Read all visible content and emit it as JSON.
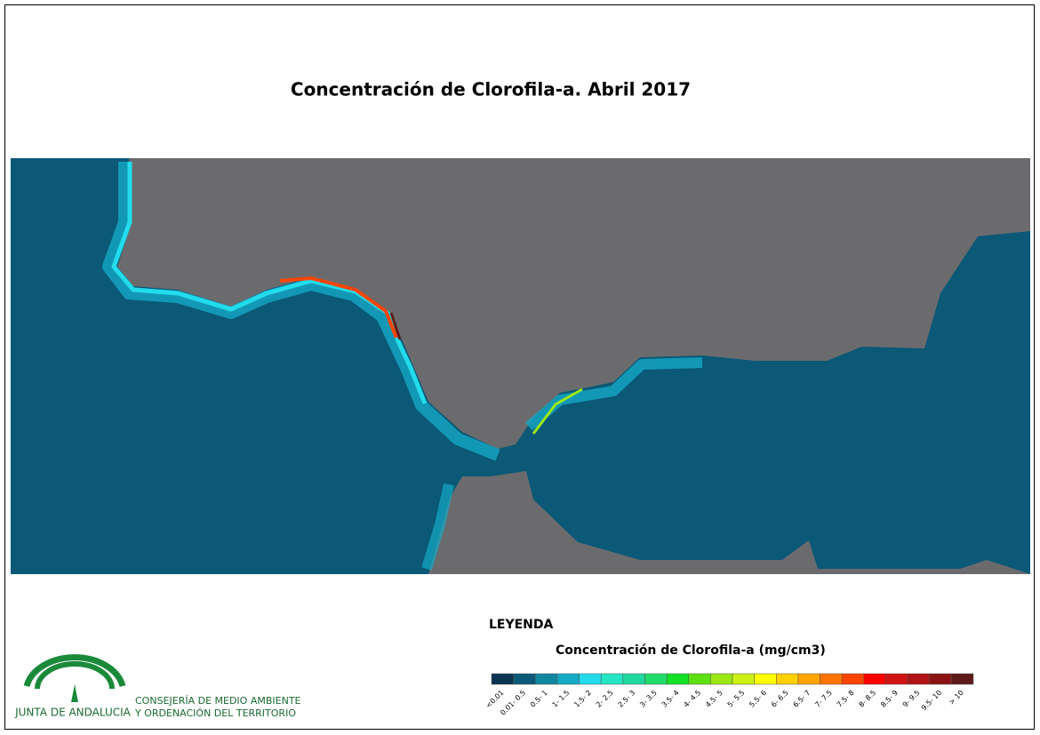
{
  "title": "Concentración de Clorofila-a. Abril 2017",
  "legend": {
    "heading": "LEYENDA",
    "subtitle": "Concentración de Clorofila-a (mg/cm3)",
    "items": [
      {
        "label": "<0.01",
        "color": "#0a3550"
      },
      {
        "label": "0.01- 0.5",
        "color": "#0d5a78"
      },
      {
        "label": "0.5- 1",
        "color": "#11879f"
      },
      {
        "label": "1- 1.5",
        "color": "#14a9c4"
      },
      {
        "label": "1.5- 2",
        "color": "#22dcec"
      },
      {
        "label": "2- 2.5",
        "color": "#24e6c4"
      },
      {
        "label": "2.5- 3",
        "color": "#20d8a0"
      },
      {
        "label": "3- 3.5",
        "color": "#20dc6c"
      },
      {
        "label": "3.5- 4",
        "color": "#14e024"
      },
      {
        "label": "4- 4.5",
        "color": "#5ce010"
      },
      {
        "label": "4.5- 5",
        "color": "#9ce814"
      },
      {
        "label": "5- 5.5",
        "color": "#ccf014"
      },
      {
        "label": "5.5- 6",
        "color": "#ffff00"
      },
      {
        "label": "6- 6.5",
        "color": "#ffd000"
      },
      {
        "label": "6.5- 7",
        "color": "#ffa400"
      },
      {
        "label": "7- 7.5",
        "color": "#ff7400"
      },
      {
        "label": "7.5- 8",
        "color": "#ff4400"
      },
      {
        "label": "8- 8.5",
        "color": "#ff0000"
      },
      {
        "label": "8.5- 9",
        "color": "#d01414"
      },
      {
        "label": "9- 9.5",
        "color": "#b01414"
      },
      {
        "label": "9.5- 10",
        "color": "#8a1414"
      },
      {
        "label": "> 10",
        "color": "#5e1a1a"
      }
    ]
  },
  "logo": {
    "name": "JUNTA DE ANDALUCIA",
    "department": [
      "CONSEJERÍA DE MEDIO AMBIENTE",
      "Y ORDENACIÓN DEL TERRITORIO"
    ]
  }
}
